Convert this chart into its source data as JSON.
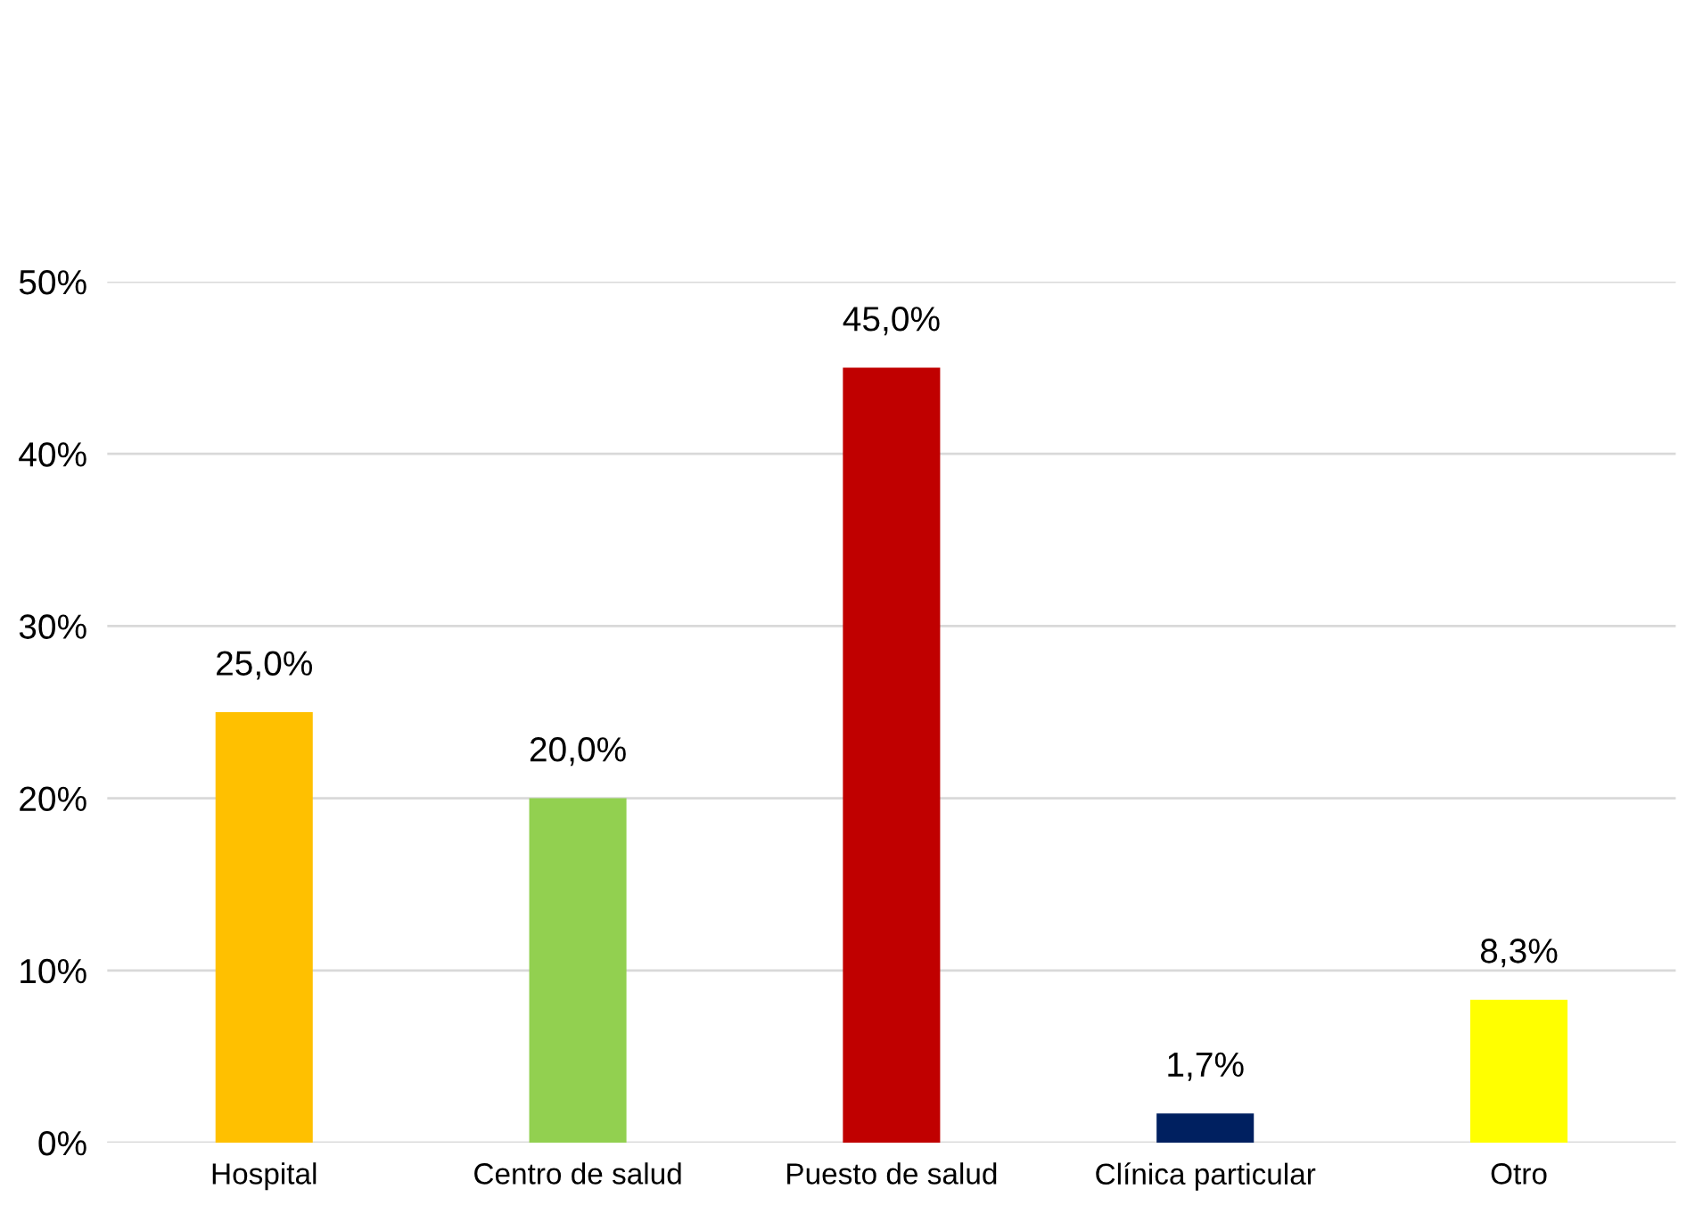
{
  "chart_data": {
    "type": "bar",
    "categories": [
      "Hospital",
      "Centro de salud",
      "Puesto de salud",
      "Clínica particular",
      "Otro"
    ],
    "values": [
      25.0,
      20.0,
      45.0,
      1.7,
      8.3
    ],
    "colors": [
      "#ffc000",
      "#92d050",
      "#c00000",
      "#002060",
      "#ffff00"
    ],
    "value_labels": [
      "25,0%",
      "20,0%",
      "45,0%",
      "1,7%",
      "8,3%"
    ],
    "ylim": [
      0,
      50
    ],
    "yticks": [
      {
        "value": 0,
        "label": "0%"
      },
      {
        "value": 10,
        "label": "10%"
      },
      {
        "value": 20,
        "label": "20%"
      },
      {
        "value": 30,
        "label": "30%"
      },
      {
        "value": 40,
        "label": "40%"
      },
      {
        "value": 50,
        "label": "50%"
      }
    ],
    "grid": "y"
  }
}
